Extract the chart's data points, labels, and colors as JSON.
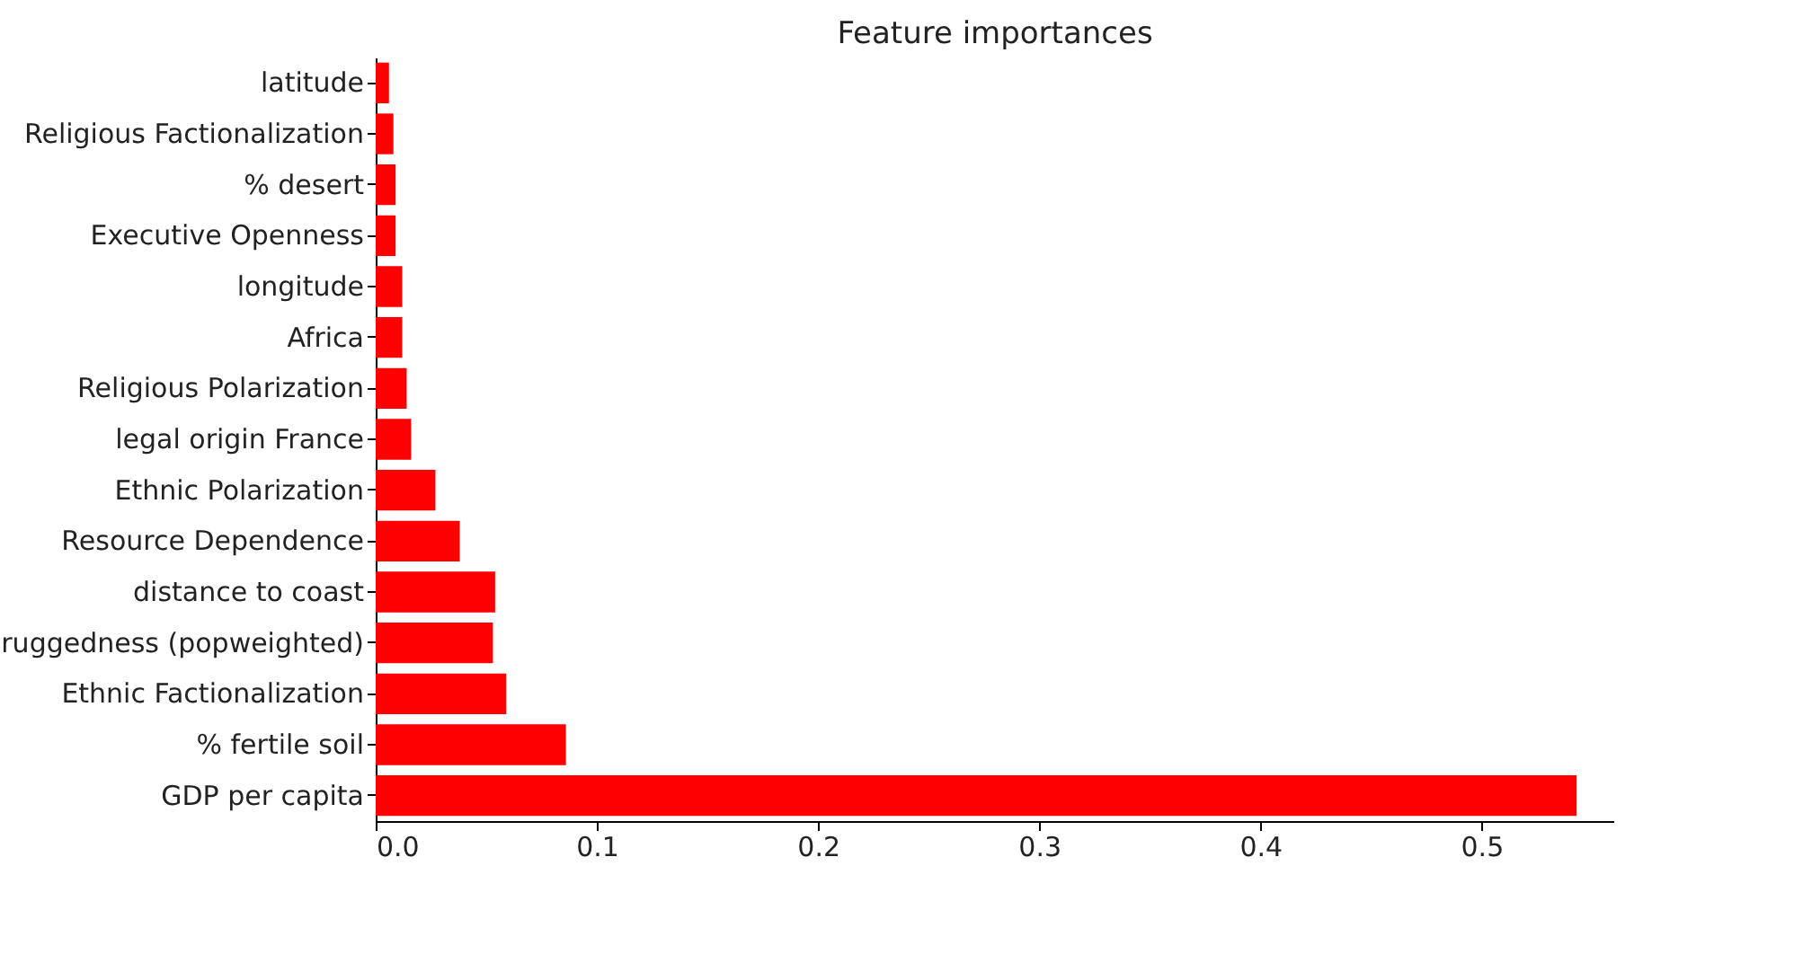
{
  "chart_data": {
    "type": "bar",
    "orientation": "horizontal",
    "title": "Feature importances",
    "categories": [
      "latitude",
      "Religious Factionalization",
      "% desert",
      "Executive Openness",
      "longitude",
      "Africa",
      "Religious Polarization",
      "legal origin France",
      "Ethnic Polarization",
      "Resource Dependence",
      "distance to coast",
      "ruggedness (popweighted)",
      "Ethnic Factionalization",
      "% fertile soil",
      "GDP per capita"
    ],
    "values": [
      0.006,
      0.008,
      0.009,
      0.009,
      0.012,
      0.012,
      0.014,
      0.016,
      0.027,
      0.038,
      0.054,
      0.053,
      0.059,
      0.086,
      0.543
    ],
    "color": "#ff0000",
    "xlim": [
      0,
      0.56
    ],
    "xticks": [
      {
        "value": 0,
        "label": "0.0"
      },
      0.1,
      0.2,
      0.3,
      0.4,
      0.5
    ],
    "grid": false
  }
}
